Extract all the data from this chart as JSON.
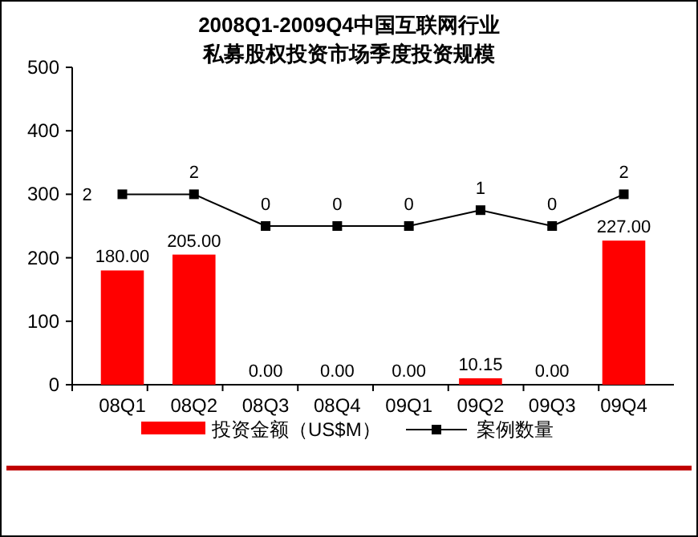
{
  "chart_data": {
    "type": "bar",
    "title": "2008Q1-2009Q4中国互联网行业",
    "subtitle": "私募股权投资市场季度投资规模",
    "categories": [
      "08Q1",
      "08Q2",
      "08Q3",
      "08Q4",
      "09Q1",
      "09Q2",
      "09Q3",
      "09Q4"
    ],
    "series": [
      {
        "name": "投资金额（US$M）",
        "color": "#ff0000",
        "values": [
          180,
          205,
          0,
          0,
          0,
          10.15,
          0,
          227
        ],
        "value_labels": [
          "180.00",
          "205.00",
          "0.00",
          "0.00",
          "0.00",
          "10.15",
          "0.00",
          "227.00"
        ]
      },
      {
        "name": "案例数量",
        "type": "line",
        "axis": "y2",
        "color": "#000000",
        "values": [
          2,
          2,
          0,
          0,
          0,
          1,
          0,
          2
        ],
        "value_labels": [
          "2",
          "2",
          "0",
          "0",
          "0",
          "1",
          "0",
          "2"
        ]
      }
    ],
    "ylim": [
      0,
      500
    ],
    "yticks": [
      0,
      100,
      200,
      300,
      400,
      500
    ],
    "y2lim": [
      -10,
      10
    ],
    "legend": "bottom",
    "marker": "square",
    "line_style": "solid",
    "grid": false
  }
}
